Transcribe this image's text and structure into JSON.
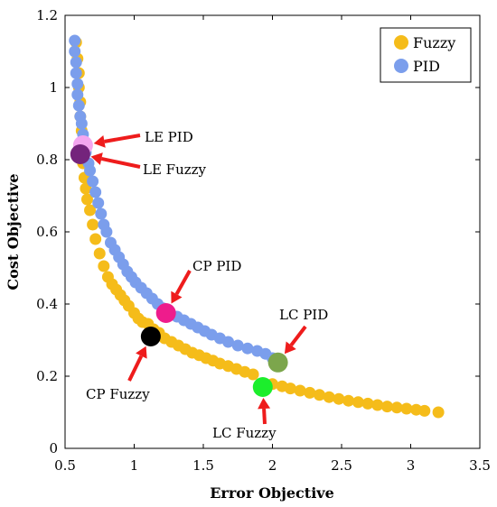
{
  "colors": {
    "fuzzy": "#F5BC1A",
    "pid": "#7B9EEC",
    "arrow": "#EE1C1C",
    "le_pid": "#F4A6F0",
    "le_fuzzy": "#74247C",
    "cp_pid": "#EE1C8C",
    "cp_fuzzy": "#000000",
    "lc_pid": "#7CA64C",
    "lc_fuzzy": "#1CEE2C"
  },
  "chart_data": {
    "type": "scatter",
    "xlabel": "Error Objective",
    "ylabel": "Cost Objective",
    "xlim": [
      0.5,
      3.5
    ],
    "ylim": [
      0,
      1.2
    ],
    "xticks": [
      {
        "value": 0.5,
        "label": "0.5"
      },
      {
        "value": 1,
        "label": "1"
      },
      {
        "value": 1.5,
        "label": "1.5"
      },
      {
        "value": 2,
        "label": "2"
      },
      {
        "value": 2.5,
        "label": "2.5"
      },
      {
        "value": 3,
        "label": "3"
      },
      {
        "value": 3.5,
        "label": "3.5"
      }
    ],
    "yticks": [
      {
        "value": 0,
        "label": "0"
      },
      {
        "value": 0.2,
        "label": "0.2"
      },
      {
        "value": 0.4,
        "label": "0.4"
      },
      {
        "value": 0.6,
        "label": "0.6"
      },
      {
        "value": 0.8,
        "label": "0.8"
      },
      {
        "value": 1,
        "label": "1"
      },
      {
        "value": 1.2,
        "label": "1.2"
      }
    ],
    "grid": false,
    "legend_position": "top-right",
    "series": [
      {
        "name": "Fuzzy",
        "color": "#F5BC1A",
        "points": [
          [
            0.58,
            1.125
          ],
          [
            0.59,
            1.08
          ],
          [
            0.6,
            1.04
          ],
          [
            0.6,
            1.0
          ],
          [
            0.61,
            0.96
          ],
          [
            0.61,
            0.92
          ],
          [
            0.62,
            0.88
          ],
          [
            0.62,
            0.85
          ],
          [
            0.63,
            0.79
          ],
          [
            0.64,
            0.75
          ],
          [
            0.65,
            0.72
          ],
          [
            0.66,
            0.69
          ],
          [
            0.68,
            0.66
          ],
          [
            0.7,
            0.62
          ],
          [
            0.72,
            0.58
          ],
          [
            0.75,
            0.54
          ],
          [
            0.78,
            0.505
          ],
          [
            0.81,
            0.475
          ],
          [
            0.84,
            0.455
          ],
          [
            0.87,
            0.44
          ],
          [
            0.9,
            0.425
          ],
          [
            0.93,
            0.41
          ],
          [
            0.96,
            0.395
          ],
          [
            1.0,
            0.375
          ],
          [
            1.03,
            0.36
          ],
          [
            1.06,
            0.35
          ],
          [
            1.1,
            0.345
          ],
          [
            1.14,
            0.33
          ],
          [
            1.18,
            0.32
          ],
          [
            1.22,
            0.305
          ],
          [
            1.27,
            0.295
          ],
          [
            1.32,
            0.285
          ],
          [
            1.37,
            0.275
          ],
          [
            1.42,
            0.265
          ],
          [
            1.47,
            0.258
          ],
          [
            1.52,
            0.25
          ],
          [
            1.57,
            0.243
          ],
          [
            1.62,
            0.235
          ],
          [
            1.68,
            0.228
          ],
          [
            1.74,
            0.22
          ],
          [
            1.8,
            0.212
          ],
          [
            1.86,
            0.205
          ],
          [
            2.0,
            0.178
          ],
          [
            2.07,
            0.172
          ],
          [
            2.13,
            0.166
          ],
          [
            2.2,
            0.16
          ],
          [
            2.27,
            0.154
          ],
          [
            2.34,
            0.148
          ],
          [
            2.41,
            0.142
          ],
          [
            2.48,
            0.137
          ],
          [
            2.55,
            0.132
          ],
          [
            2.62,
            0.128
          ],
          [
            2.69,
            0.124
          ],
          [
            2.76,
            0.12
          ],
          [
            2.83,
            0.116
          ],
          [
            2.9,
            0.113
          ],
          [
            2.97,
            0.11
          ],
          [
            3.04,
            0.107
          ],
          [
            3.1,
            0.104
          ],
          [
            3.2,
            0.1
          ]
        ]
      },
      {
        "name": "PID",
        "color": "#7B9EEC",
        "points": [
          [
            0.57,
            1.13
          ],
          [
            0.57,
            1.1
          ],
          [
            0.58,
            1.07
          ],
          [
            0.58,
            1.04
          ],
          [
            0.59,
            1.01
          ],
          [
            0.59,
            0.98
          ],
          [
            0.6,
            0.95
          ],
          [
            0.61,
            0.92
          ],
          [
            0.62,
            0.9
          ],
          [
            0.63,
            0.87
          ],
          [
            0.64,
            0.85
          ],
          [
            0.65,
            0.82
          ],
          [
            0.67,
            0.79
          ],
          [
            0.68,
            0.77
          ],
          [
            0.7,
            0.74
          ],
          [
            0.72,
            0.71
          ],
          [
            0.74,
            0.68
          ],
          [
            0.76,
            0.65
          ],
          [
            0.78,
            0.62
          ],
          [
            0.8,
            0.6
          ],
          [
            0.83,
            0.57
          ],
          [
            0.86,
            0.55
          ],
          [
            0.89,
            0.53
          ],
          [
            0.92,
            0.51
          ],
          [
            0.95,
            0.49
          ],
          [
            0.98,
            0.475
          ],
          [
            1.01,
            0.46
          ],
          [
            1.05,
            0.445
          ],
          [
            1.09,
            0.43
          ],
          [
            1.13,
            0.415
          ],
          [
            1.17,
            0.4
          ],
          [
            1.21,
            0.388
          ],
          [
            1.26,
            0.375
          ],
          [
            1.31,
            0.365
          ],
          [
            1.36,
            0.355
          ],
          [
            1.41,
            0.345
          ],
          [
            1.46,
            0.335
          ],
          [
            1.51,
            0.325
          ],
          [
            1.56,
            0.315
          ],
          [
            1.62,
            0.305
          ],
          [
            1.68,
            0.295
          ],
          [
            1.75,
            0.285
          ],
          [
            1.82,
            0.277
          ],
          [
            1.89,
            0.27
          ],
          [
            1.95,
            0.262
          ],
          [
            2.0,
            0.25
          ]
        ]
      }
    ],
    "highlights": [
      {
        "label": "LE PID",
        "x": 0.63,
        "y": 0.84,
        "color": "#F4A6F0"
      },
      {
        "label": "LE Fuzzy",
        "x": 0.61,
        "y": 0.815,
        "color": "#74247C"
      },
      {
        "label": "CP PID",
        "x": 1.23,
        "y": 0.375,
        "color": "#EE1C8C"
      },
      {
        "label": "CP Fuzzy",
        "x": 1.12,
        "y": 0.31,
        "color": "#000000"
      },
      {
        "label": "LC PID",
        "x": 2.04,
        "y": 0.238,
        "color": "#7CA64C"
      },
      {
        "label": "LC Fuzzy",
        "x": 1.93,
        "y": 0.17,
        "color": "#1CEE2C"
      }
    ]
  }
}
